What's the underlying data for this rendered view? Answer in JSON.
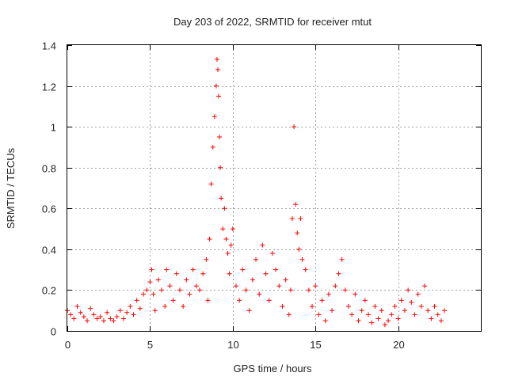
{
  "chart_data": {
    "type": "scatter",
    "title": "Day 203 of 2022, SRMTID for receiver mtut",
    "xlabel": "GPS time / hours",
    "ylabel": "SRMTID / TECUs",
    "xlim": [
      0,
      25
    ],
    "ylim": [
      0,
      1.4
    ],
    "xticks": [
      0,
      5,
      10,
      15,
      20
    ],
    "xtick_labels": [
      "0",
      "5",
      "10",
      "15",
      "20"
    ],
    "yticks": [
      0,
      0.2,
      0.4,
      0.6,
      0.8,
      1,
      1.2,
      1.4
    ],
    "ytick_labels": [
      "0",
      "0.2",
      "0.4",
      "0.6",
      "0.8",
      "1",
      "1.2",
      "1.4"
    ],
    "grid": true,
    "marker": "+",
    "color": "#ff0000",
    "series": [
      {
        "name": "SRMTID",
        "x": [
          0.0,
          0.2,
          0.4,
          0.6,
          0.8,
          1.0,
          1.2,
          1.4,
          1.6,
          1.8,
          2.0,
          2.2,
          2.4,
          2.6,
          2.8,
          3.0,
          3.2,
          3.4,
          3.6,
          3.8,
          4.0,
          4.2,
          4.4,
          4.6,
          4.8,
          5.0,
          5.1,
          5.2,
          5.3,
          5.5,
          5.7,
          5.9,
          6.0,
          6.2,
          6.4,
          6.6,
          6.8,
          7.0,
          7.2,
          7.4,
          7.6,
          7.8,
          8.0,
          8.2,
          8.4,
          8.5,
          8.6,
          8.7,
          8.8,
          8.9,
          9.0,
          9.05,
          9.1,
          9.15,
          9.2,
          9.25,
          9.3,
          9.4,
          9.5,
          9.6,
          9.7,
          9.8,
          9.9,
          10.0,
          10.2,
          10.4,
          10.6,
          10.8,
          11.0,
          11.2,
          11.4,
          11.6,
          11.8,
          12.0,
          12.2,
          12.4,
          12.6,
          12.8,
          13.0,
          13.2,
          13.4,
          13.5,
          13.6,
          13.7,
          13.8,
          13.9,
          14.0,
          14.1,
          14.2,
          14.4,
          14.6,
          14.8,
          15.0,
          15.2,
          15.4,
          15.6,
          15.8,
          16.0,
          16.2,
          16.4,
          16.6,
          16.8,
          17.0,
          17.2,
          17.4,
          17.6,
          17.8,
          18.0,
          18.2,
          18.4,
          18.6,
          18.8,
          19.0,
          19.2,
          19.4,
          19.6,
          19.8,
          20.0,
          20.2,
          20.4,
          20.6,
          20.8,
          21.0,
          21.2,
          21.4,
          21.6,
          21.8,
          22.0,
          22.2,
          22.4,
          22.6,
          22.8
        ],
        "y": [
          0.1,
          0.08,
          0.06,
          0.12,
          0.09,
          0.07,
          0.05,
          0.11,
          0.08,
          0.06,
          0.07,
          0.05,
          0.09,
          0.06,
          0.05,
          0.07,
          0.1,
          0.06,
          0.09,
          0.12,
          0.08,
          0.15,
          0.11,
          0.18,
          0.2,
          0.24,
          0.3,
          0.18,
          0.1,
          0.25,
          0.2,
          0.12,
          0.3,
          0.22,
          0.15,
          0.28,
          0.2,
          0.12,
          0.25,
          0.18,
          0.3,
          0.22,
          0.2,
          0.28,
          0.35,
          0.15,
          0.45,
          0.72,
          0.9,
          1.05,
          1.2,
          1.33,
          1.28,
          1.15,
          0.95,
          0.8,
          0.65,
          0.5,
          0.6,
          0.45,
          0.38,
          0.28,
          0.42,
          0.5,
          0.22,
          0.15,
          0.3,
          0.2,
          0.1,
          0.25,
          0.35,
          0.18,
          0.42,
          0.28,
          0.15,
          0.38,
          0.3,
          0.22,
          0.12,
          0.25,
          0.08,
          0.2,
          0.55,
          1.0,
          0.62,
          0.48,
          0.4,
          0.55,
          0.35,
          0.3,
          0.2,
          0.12,
          0.22,
          0.08,
          0.15,
          0.05,
          0.18,
          0.1,
          0.22,
          0.28,
          0.35,
          0.2,
          0.12,
          0.08,
          0.18,
          0.05,
          0.1,
          0.15,
          0.08,
          0.04,
          0.12,
          0.06,
          0.1,
          0.03,
          0.05,
          0.08,
          0.12,
          0.06,
          0.15,
          0.1,
          0.2,
          0.14,
          0.08,
          0.18,
          0.12,
          0.22,
          0.1,
          0.06,
          0.12,
          0.08,
          0.05,
          0.1
        ]
      }
    ]
  }
}
